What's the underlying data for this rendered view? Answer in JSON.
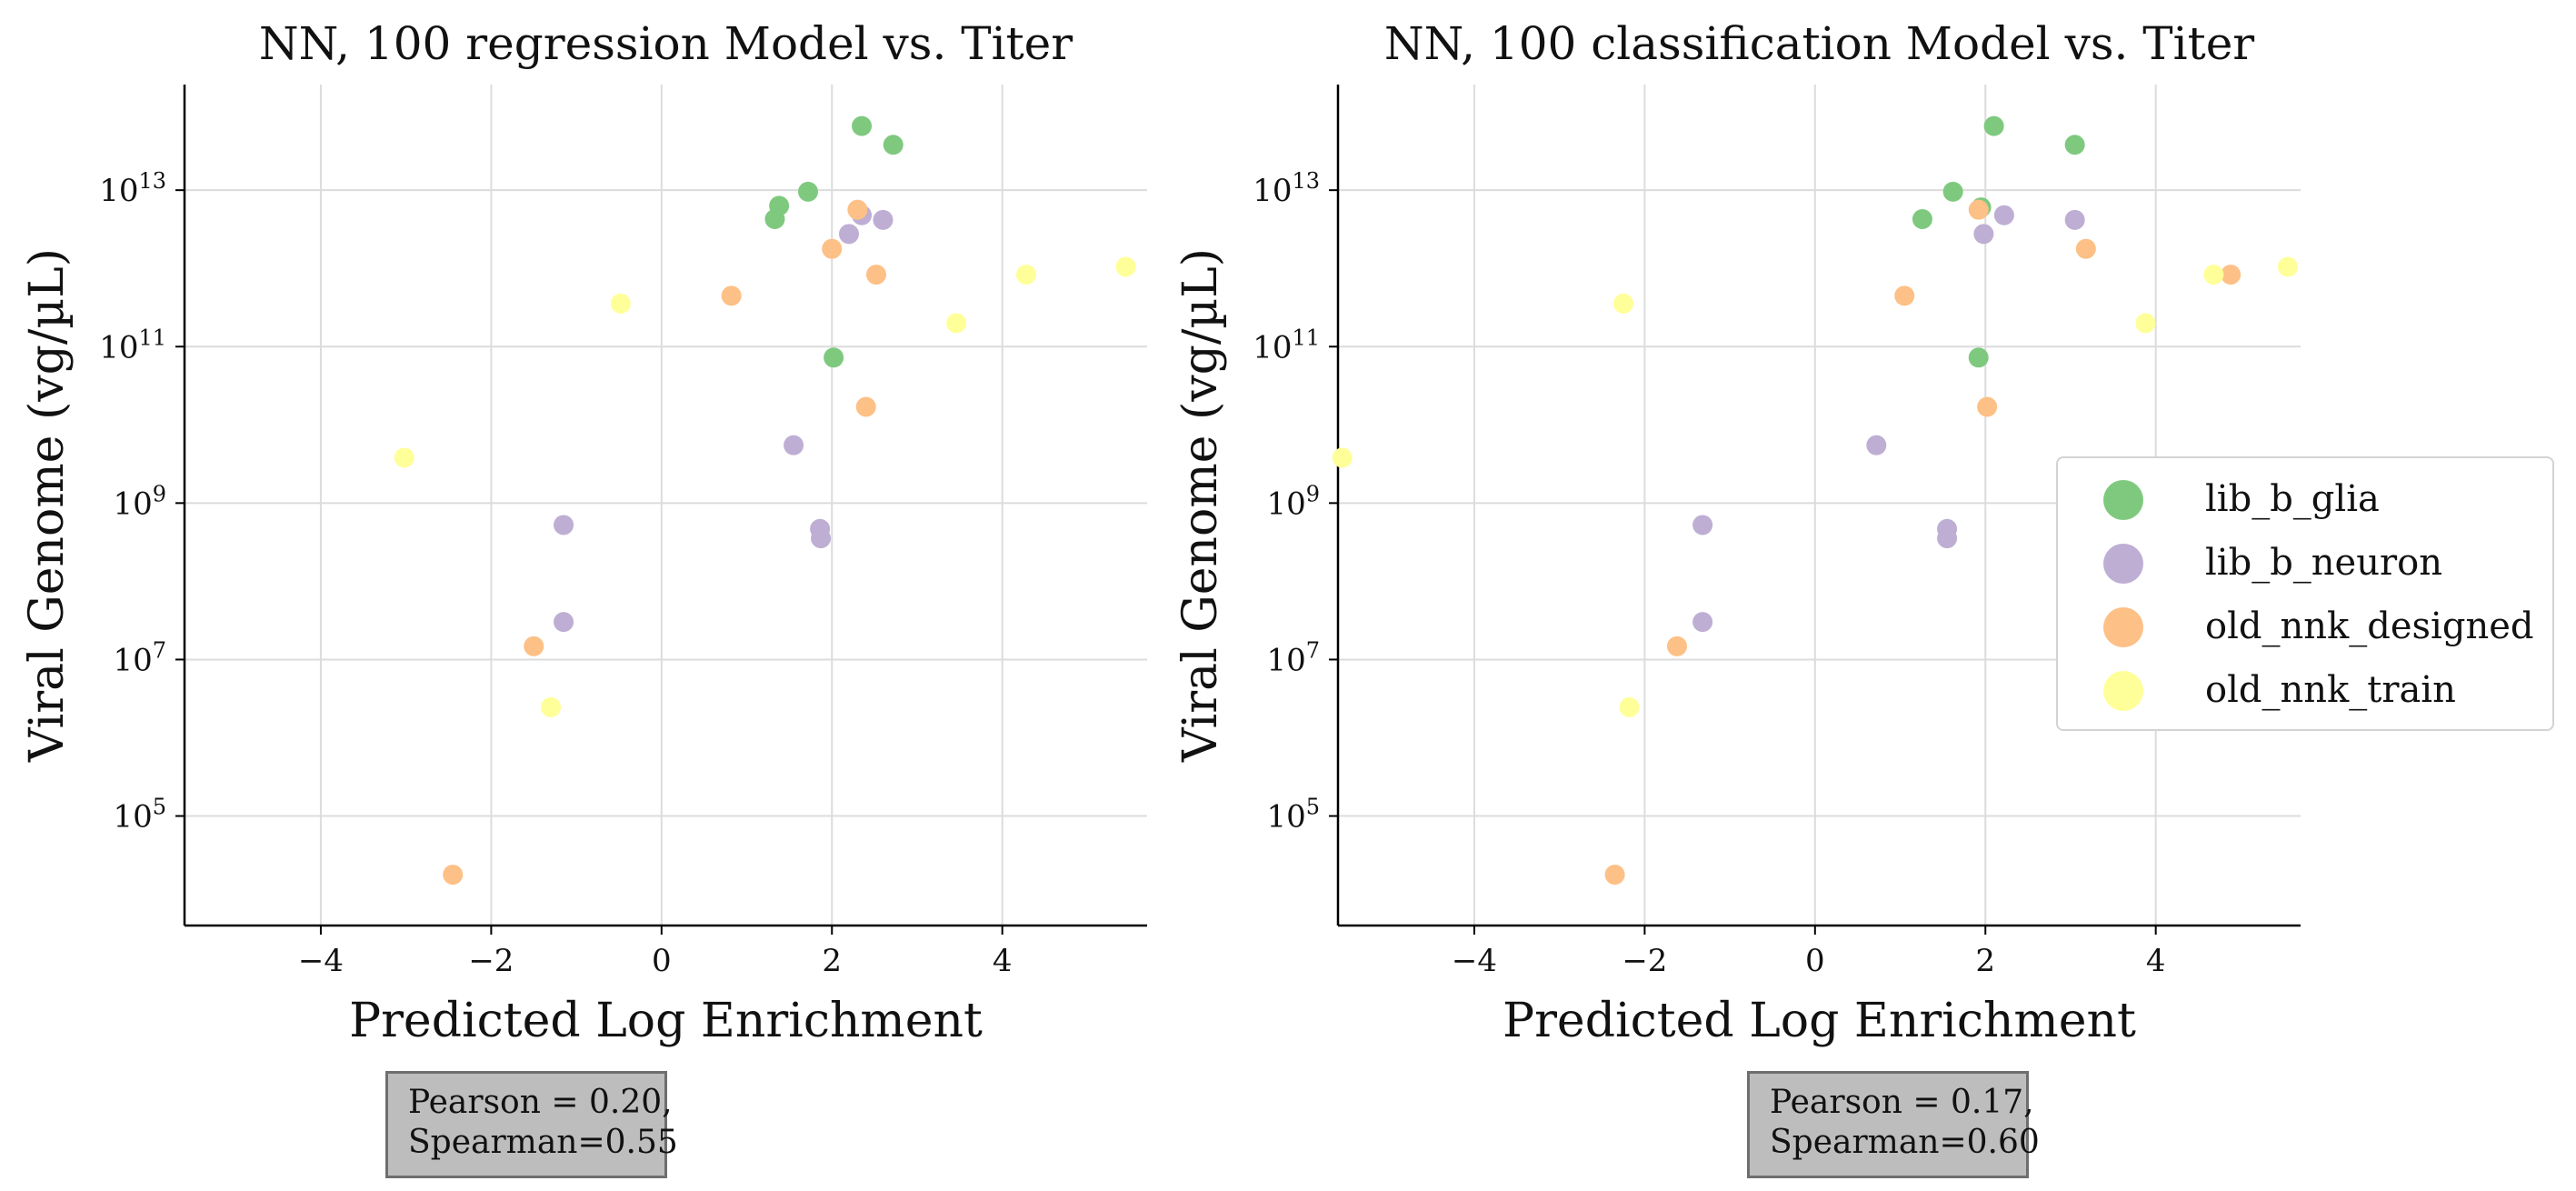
{
  "chart_data": [
    {
      "type": "scatter",
      "title": "NN, 100 regression Model vs. Titer",
      "xlabel": "Predicted Log Enrichment",
      "ylabel": "Viral Genome (vg/µL)",
      "y_scale": "log",
      "xlim": [
        -5.6,
        5.7
      ],
      "ylim_log10": [
        3.6,
        14.35
      ],
      "x_ticks": [
        -4,
        -2,
        0,
        2,
        4
      ],
      "x_tick_labels": [
        "−4",
        "−2",
        "0",
        "2",
        "4"
      ],
      "y_tick_exponents": [
        5,
        7,
        9,
        11,
        13
      ],
      "grid": true,
      "stats": {
        "line1": "Pearson = 0.20,",
        "line2": "Spearman=0.55"
      },
      "series": [
        {
          "name": "lib_b_glia",
          "color": "#7fc97f",
          "points": [
            [
              2.35,
              13.82
            ],
            [
              2.72,
              13.58
            ],
            [
              1.38,
              12.8
            ],
            [
              1.72,
              12.98
            ],
            [
              1.33,
              12.63
            ],
            [
              2.02,
              10.86
            ]
          ]
        },
        {
          "name": "lib_b_neuron",
          "color": "#beaed4",
          "points": [
            [
              2.35,
              12.68
            ],
            [
              2.6,
              12.62
            ],
            [
              2.2,
              12.44
            ],
            [
              1.55,
              9.74
            ],
            [
              -1.15,
              8.72
            ],
            [
              1.86,
              8.67
            ],
            [
              1.87,
              8.55
            ],
            [
              -1.15,
              7.48
            ]
          ]
        },
        {
          "name": "old_nnk_designed",
          "color": "#fdc086",
          "points": [
            [
              2.3,
              12.75
            ],
            [
              2.0,
              12.25
            ],
            [
              2.52,
              11.92
            ],
            [
              0.82,
              11.65
            ],
            [
              2.4,
              10.23
            ],
            [
              -1.5,
              7.17
            ],
            [
              -2.45,
              4.25
            ]
          ]
        },
        {
          "name": "old_nnk_train",
          "color": "#ffff99",
          "points": [
            [
              5.45,
              12.02
            ],
            [
              4.28,
              11.92
            ],
            [
              -0.48,
              11.55
            ],
            [
              3.46,
              11.3
            ],
            [
              -3.02,
              9.58
            ],
            [
              -1.3,
              6.39
            ]
          ]
        }
      ]
    },
    {
      "type": "scatter",
      "title": "NN, 100 classification Model vs. Titer",
      "xlabel": "Predicted Log Enrichment",
      "ylabel": "Viral Genome (vg/µL)",
      "y_scale": "log",
      "xlim": [
        -5.6,
        5.7
      ],
      "ylim_log10": [
        3.6,
        14.35
      ],
      "x_ticks": [
        -4,
        -2,
        0,
        2,
        4
      ],
      "x_tick_labels": [
        "−4",
        "−2",
        "0",
        "2",
        "4"
      ],
      "y_tick_exponents": [
        5,
        7,
        9,
        11,
        13
      ],
      "grid": true,
      "stats": {
        "line1": "Pearson = 0.17,",
        "line2": "Spearman=0.60"
      },
      "series": [
        {
          "name": "lib_b_glia",
          "color": "#7fc97f",
          "points": [
            [
              2.1,
              13.82
            ],
            [
              3.05,
              13.58
            ],
            [
              1.62,
              12.98
            ],
            [
              1.95,
              12.78
            ],
            [
              1.26,
              12.63
            ],
            [
              1.92,
              10.86
            ]
          ]
        },
        {
          "name": "lib_b_neuron",
          "color": "#beaed4",
          "points": [
            [
              2.22,
              12.68
            ],
            [
              3.05,
              12.62
            ],
            [
              1.98,
              12.44
            ],
            [
              0.72,
              9.74
            ],
            [
              -1.32,
              8.72
            ],
            [
              1.55,
              8.67
            ],
            [
              1.55,
              8.55
            ],
            [
              -1.32,
              7.48
            ]
          ]
        },
        {
          "name": "old_nnk_designed",
          "color": "#fdc086",
          "points": [
            [
              1.92,
              12.75
            ],
            [
              3.18,
              12.25
            ],
            [
              4.88,
              11.92
            ],
            [
              1.05,
              11.65
            ],
            [
              2.02,
              10.23
            ],
            [
              -1.62,
              7.17
            ],
            [
              -2.35,
              4.25
            ]
          ]
        },
        {
          "name": "old_nnk_train",
          "color": "#ffff99",
          "points": [
            [
              5.55,
              12.02
            ],
            [
              4.68,
              11.92
            ],
            [
              -2.25,
              11.55
            ],
            [
              3.88,
              11.3
            ],
            [
              -5.55,
              9.58
            ],
            [
              -2.18,
              6.39
            ]
          ]
        }
      ]
    }
  ],
  "legend": {
    "items": [
      {
        "label": "lib_b_glia",
        "color": "#7fc97f"
      },
      {
        "label": "lib_b_neuron",
        "color": "#beaed4"
      },
      {
        "label": "old_nnk_designed",
        "color": "#fdc086"
      },
      {
        "label": "old_nnk_train",
        "color": "#ffff99"
      }
    ]
  }
}
